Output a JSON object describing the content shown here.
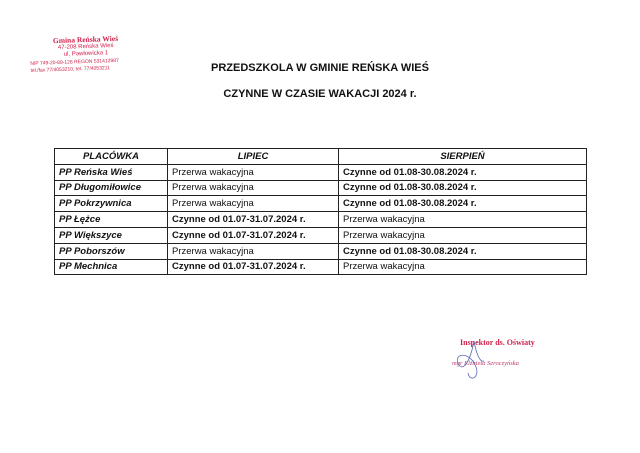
{
  "stamp": {
    "lines": [
      "Gmina Reńska Wieś",
      "47-208 Reńska Wieś",
      "ul. Pawłowicka 1",
      "NIP 749-20-89-126  REGON 531412987",
      "tel./fax 77/4053210, tel. 77/4053211"
    ]
  },
  "title_line1": "PRZEDSZKOLA W GMINIE REŃSKA WIEŚ",
  "title_line2": "CZYNNE  W CZASIE WAKACJI 2024 r.",
  "table": {
    "headers": [
      "PLACÓWKA",
      "LIPIEC",
      "SIERPIEŃ"
    ],
    "rows": [
      [
        "PP Reńska Wieś",
        "Przerwa wakacyjna",
        "Czynne od 01.08-30.08.2024 r."
      ],
      [
        "PP Długomiłowice",
        "Przerwa wakacyjna",
        "Czynne od 01.08-30.08.2024 r."
      ],
      [
        "PP Pokrzywnica",
        "Przerwa wakacyjna",
        "Czynne od 01.08-30.08.2024 r."
      ],
      [
        "PP Łężce",
        "Czynne od 01.07-31.07.2024 r.",
        "Przerwa wakacyjna"
      ],
      [
        "PP Większyce",
        "Czynne od 01.07-31.07.2024 r.",
        "Przerwa wakacyjna"
      ],
      [
        "PP Poborszów",
        "Przerwa wakacyjna",
        "Czynne od 01.08-30.08.2024 r."
      ],
      [
        "PP Mechnica",
        "Czynne od 01.07-31.07.2024 r.",
        "Przerwa wakacyjna"
      ]
    ]
  },
  "signature": {
    "title": "Inspektor ds. Oświaty",
    "name": "mgr Elżbieta Seroczyńska"
  },
  "colors": {
    "stamp": "#d0204a"
  }
}
